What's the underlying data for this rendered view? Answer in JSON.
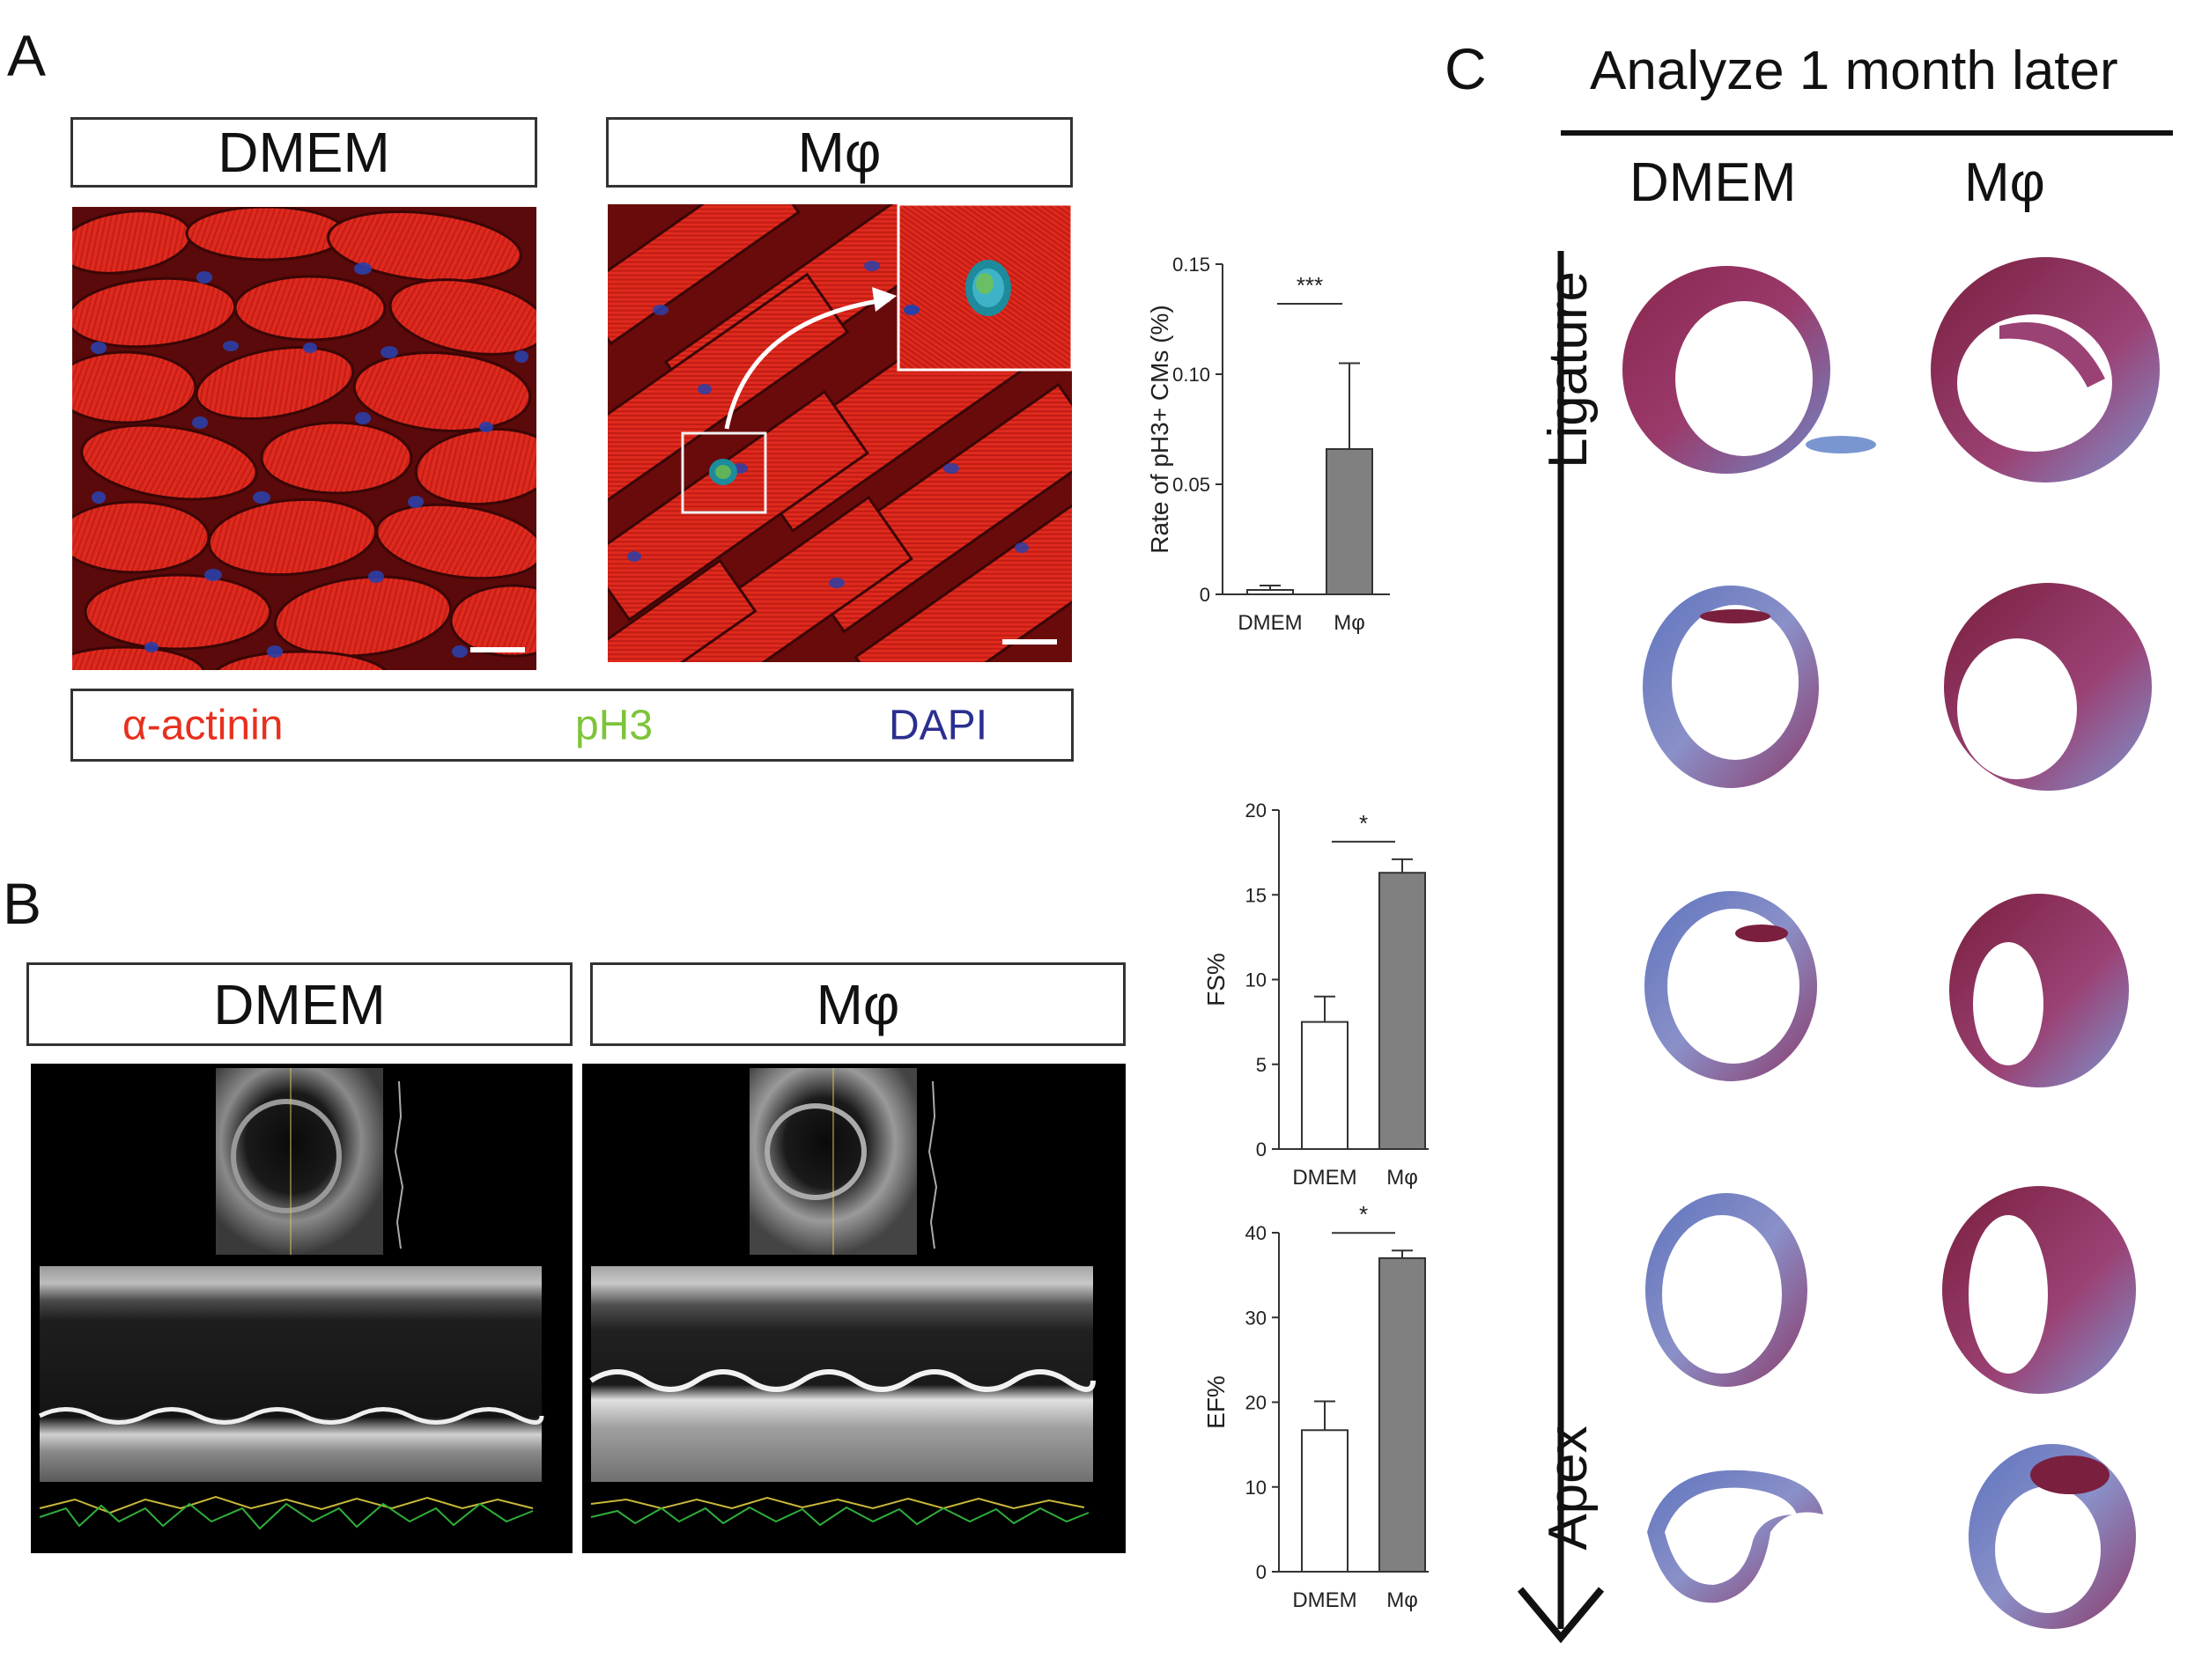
{
  "panels": {
    "a": {
      "letter": "A",
      "conditions": [
        "DMEM",
        "Mφ"
      ],
      "legend": [
        {
          "label": "α-actinin",
          "color": "#e8301e"
        },
        {
          "label": "pH3",
          "color": "#7ec43a"
        },
        {
          "label": "DAPI",
          "color": "#2b2f8f"
        }
      ]
    },
    "b": {
      "letter": "B",
      "conditions": [
        "DMEM",
        "Mφ"
      ]
    },
    "c": {
      "letter": "C",
      "title": "Analyze 1 month later",
      "conditions": [
        "DMEM",
        "Mφ"
      ],
      "axis_top": "Ligature",
      "axis_bottom": "Apex"
    }
  },
  "chart_data": [
    {
      "type": "bar",
      "ylabel": "Rate of pH3+ CMs (%)",
      "categories": [
        "DMEM",
        "Mφ"
      ],
      "values": [
        0.002,
        0.066
      ],
      "errors": [
        0.002,
        0.039
      ],
      "ylim": [
        0,
        0.15
      ],
      "yticks": [
        "0",
        "0.05",
        "0.10",
        "0.15"
      ],
      "ytick_values": [
        0,
        0.05,
        0.1,
        0.15
      ],
      "significance": "***",
      "bar_colors": [
        "#ffffff",
        "#808080"
      ]
    },
    {
      "type": "bar",
      "ylabel": "FS%",
      "categories": [
        "DMEM",
        "Mφ"
      ],
      "values": [
        7.5,
        16.3
      ],
      "errors": [
        1.5,
        0.8
      ],
      "ylim": [
        0,
        20
      ],
      "yticks": [
        "0",
        "5",
        "10",
        "15",
        "20"
      ],
      "ytick_values": [
        0,
        5,
        10,
        15,
        20
      ],
      "significance": "*",
      "bar_colors": [
        "#ffffff",
        "#808080"
      ]
    },
    {
      "type": "bar",
      "ylabel": "EF%",
      "categories": [
        "DMEM",
        "Mφ"
      ],
      "values": [
        16.7,
        37.0
      ],
      "errors": [
        3.4,
        0.9
      ],
      "ylim": [
        0,
        40
      ],
      "yticks": [
        "0",
        "10",
        "20",
        "30",
        "40"
      ],
      "ytick_values": [
        0,
        10,
        20,
        30,
        40
      ],
      "significance": "*",
      "bar_colors": [
        "#ffffff",
        "#808080"
      ]
    }
  ]
}
